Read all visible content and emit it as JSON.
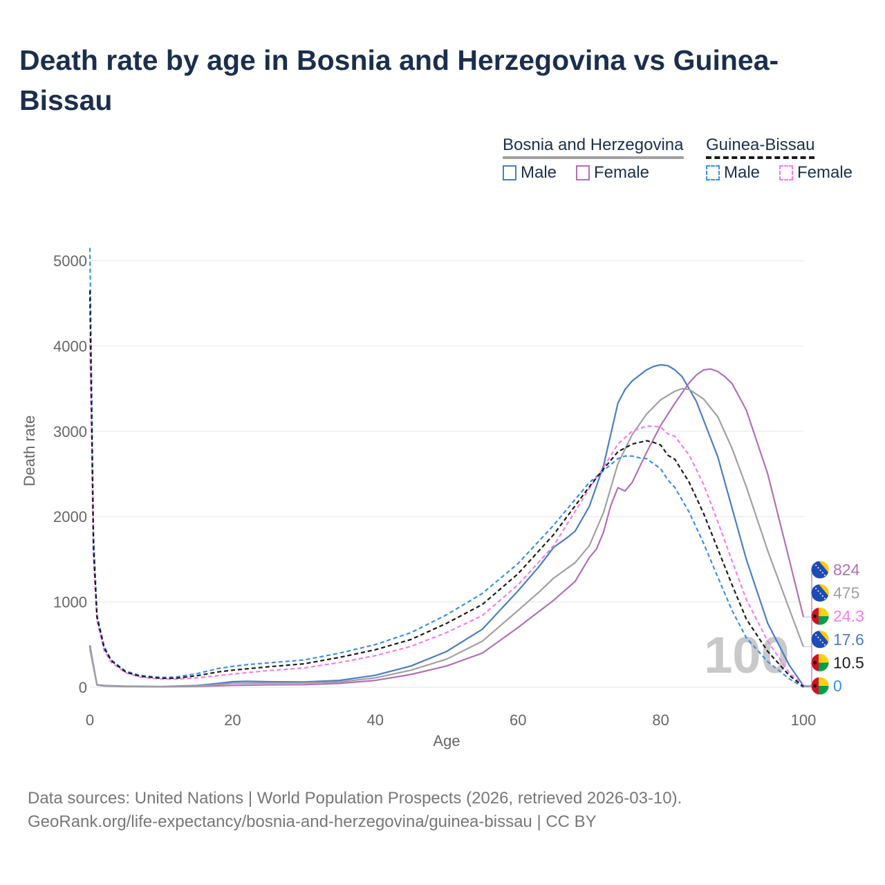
{
  "title": "Death rate by age in Bosnia and Herzegovina vs Guinea-Bissau",
  "legend": {
    "groups": [
      {
        "name": "Bosnia and Herzegovina",
        "male": "Male",
        "female": "Female"
      },
      {
        "name": "Guinea-Bissau",
        "male": "Male",
        "female": "Female"
      }
    ]
  },
  "colors": {
    "bih_male": "#4a7dc4",
    "bih_female": "#b070b5",
    "bih_total": "#a0a0a0",
    "gnb_male": "#3b8ee8",
    "gnb_female": "#f87ce8",
    "gnb_total": "#1a1a1a"
  },
  "watermark": "100",
  "footer": {
    "line1": "Data sources: United Nations | World Population Prospects (2026, retrieved 2026-03-10).",
    "line2": "GeoRank.org/life-expectancy/bosnia-and-herzegovina/guinea-bissau | CC BY"
  },
  "chart_data": {
    "type": "line",
    "xlabel": "Age",
    "ylabel": "Death rate",
    "xlim": [
      0,
      100
    ],
    "ylim": [
      0,
      5300
    ],
    "xticks": [
      0,
      20,
      40,
      60,
      80,
      100
    ],
    "yticks": [
      0,
      1000,
      2000,
      3000,
      4000,
      5000
    ],
    "grid": true,
    "series": [
      {
        "id": "bih_male",
        "name": "Bosnia and Herzegovina Male",
        "country": "Bosnia and Herzegovina",
        "dashed": false,
        "x": [
          0,
          1,
          2,
          5,
          10,
          15,
          18,
          20,
          22,
          25,
          30,
          35,
          40,
          45,
          50,
          55,
          60,
          63,
          65,
          67,
          68,
          70,
          72,
          74,
          75,
          76,
          78,
          79,
          80,
          81,
          82,
          83,
          85,
          88,
          90,
          92,
          95,
          98,
          99,
          100
        ],
        "y": [
          490,
          30,
          20,
          12,
          8,
          20,
          45,
          65,
          70,
          65,
          62,
          80,
          140,
          250,
          420,
          680,
          1130,
          1420,
          1640,
          1760,
          1830,
          2120,
          2600,
          3330,
          3490,
          3590,
          3720,
          3760,
          3780,
          3770,
          3720,
          3640,
          3350,
          2700,
          2100,
          1500,
          750,
          260,
          140,
          17.6
        ],
        "end_label": "17.6"
      },
      {
        "id": "bih_female",
        "name": "Bosnia and Herzegovina Female",
        "country": "Bosnia and Herzegovina",
        "dashed": false,
        "x": [
          0,
          1,
          2,
          5,
          10,
          15,
          20,
          25,
          30,
          35,
          40,
          45,
          50,
          55,
          60,
          65,
          68,
          70,
          71,
          72,
          73,
          74,
          75,
          76,
          78,
          80,
          82,
          84,
          85,
          86,
          87,
          88,
          89,
          90,
          92,
          95,
          98,
          100
        ],
        "y": [
          450,
          25,
          15,
          8,
          5,
          10,
          22,
          28,
          30,
          45,
          80,
          150,
          250,
          400,
          700,
          1020,
          1240,
          1520,
          1620,
          1820,
          2130,
          2340,
          2300,
          2400,
          2750,
          3070,
          3330,
          3570,
          3660,
          3720,
          3730,
          3700,
          3640,
          3560,
          3250,
          2500,
          1500,
          824
        ],
        "end_label": "824"
      },
      {
        "id": "bih_total",
        "name": "Bosnia and Herzegovina Total",
        "country": "Bosnia and Herzegovina",
        "dashed": false,
        "x": [
          0,
          1,
          2,
          5,
          10,
          15,
          20,
          25,
          30,
          35,
          40,
          45,
          50,
          55,
          60,
          63,
          65,
          68,
          70,
          72,
          74,
          76,
          78,
          80,
          82,
          83,
          84,
          86,
          88,
          90,
          92,
          95,
          98,
          100
        ],
        "y": [
          470,
          28,
          18,
          10,
          7,
          15,
          45,
          50,
          50,
          62,
          110,
          200,
          330,
          540,
          900,
          1120,
          1280,
          1460,
          1660,
          2050,
          2620,
          2960,
          3200,
          3370,
          3470,
          3500,
          3490,
          3380,
          3170,
          2800,
          2350,
          1600,
          920,
          475
        ],
        "end_label": "475"
      },
      {
        "id": "gnb_male",
        "name": "Guinea-Bissau Male",
        "country": "Guinea-Bissau",
        "dashed": true,
        "x": [
          0,
          0.5,
          1,
          2,
          3,
          5,
          7,
          10,
          12,
          15,
          18,
          20,
          22,
          25,
          30,
          35,
          40,
          45,
          50,
          55,
          60,
          65,
          70,
          72,
          74,
          75,
          76,
          77,
          78,
          79,
          80,
          81,
          82,
          84,
          86,
          88,
          90,
          92,
          95,
          98,
          100
        ],
        "y": [
          5150,
          1800,
          850,
          480,
          320,
          190,
          140,
          115,
          120,
          160,
          220,
          245,
          265,
          285,
          320,
          400,
          500,
          640,
          850,
          1100,
          1450,
          1900,
          2400,
          2540,
          2680,
          2710,
          2710,
          2690,
          2680,
          2620,
          2560,
          2430,
          2340,
          2050,
          1690,
          1290,
          900,
          580,
          300,
          100,
          0
        ],
        "end_label": "0"
      },
      {
        "id": "gnb_female",
        "name": "Guinea-Bissau Female",
        "country": "Guinea-Bissau",
        "dashed": true,
        "x": [
          0,
          0.5,
          1,
          2,
          3,
          5,
          7,
          10,
          12,
          15,
          20,
          25,
          30,
          35,
          40,
          45,
          50,
          55,
          60,
          65,
          70,
          72,
          74,
          76,
          78,
          79,
          80,
          81,
          82,
          84,
          86,
          88,
          90,
          92,
          95,
          98,
          100
        ],
        "y": [
          4100,
          1500,
          780,
          430,
          290,
          170,
          120,
          95,
          95,
          110,
          155,
          195,
          225,
          290,
          370,
          480,
          640,
          840,
          1200,
          1660,
          2330,
          2580,
          2850,
          3000,
          3060,
          3060,
          3050,
          2970,
          2940,
          2720,
          2380,
          1940,
          1480,
          1030,
          540,
          170,
          24.3
        ],
        "end_label": "24.3"
      },
      {
        "id": "gnb_total",
        "name": "Guinea-Bissau Total",
        "country": "Guinea-Bissau",
        "dashed": true,
        "x": [
          0,
          0.5,
          1,
          2,
          3,
          5,
          7,
          10,
          12,
          15,
          18,
          20,
          25,
          30,
          35,
          40,
          45,
          50,
          55,
          60,
          65,
          70,
          72,
          74,
          76,
          78,
          79,
          80,
          81,
          82,
          84,
          86,
          88,
          90,
          92,
          95,
          98,
          100
        ],
        "y": [
          4650,
          1650,
          820,
          460,
          310,
          180,
          130,
          105,
          105,
          135,
          180,
          200,
          240,
          275,
          350,
          440,
          560,
          750,
          970,
          1330,
          1790,
          2350,
          2560,
          2760,
          2850,
          2890,
          2870,
          2840,
          2720,
          2670,
          2400,
          2040,
          1620,
          1200,
          800,
          420,
          140,
          10.5
        ],
        "end_label": "10.5"
      }
    ]
  }
}
